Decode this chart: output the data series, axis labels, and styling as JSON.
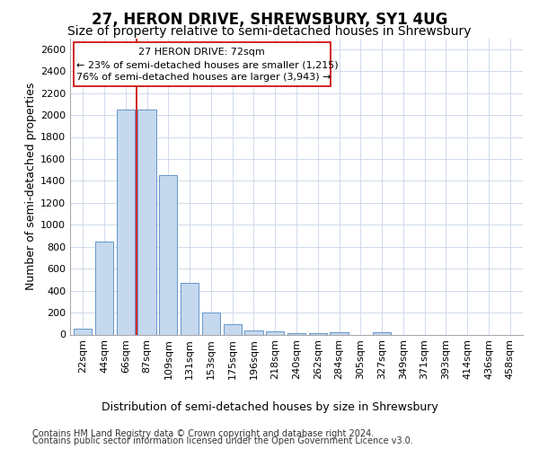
{
  "title": "27, HERON DRIVE, SHREWSBURY, SY1 4UG",
  "subtitle": "Size of property relative to semi-detached houses in Shrewsbury",
  "xlabel": "Distribution of semi-detached houses by size in Shrewsbury",
  "ylabel": "Number of semi-detached properties",
  "footer_line1": "Contains HM Land Registry data © Crown copyright and database right 2024.",
  "footer_line2": "Contains public sector information licensed under the Open Government Licence v3.0.",
  "bar_labels": [
    "22sqm",
    "44sqm",
    "66sqm",
    "87sqm",
    "109sqm",
    "131sqm",
    "153sqm",
    "175sqm",
    "196sqm",
    "218sqm",
    "240sqm",
    "262sqm",
    "284sqm",
    "305sqm",
    "327sqm",
    "349sqm",
    "371sqm",
    "393sqm",
    "414sqm",
    "436sqm",
    "458sqm"
  ],
  "bar_values": [
    50,
    850,
    2050,
    2050,
    1450,
    470,
    200,
    95,
    40,
    25,
    15,
    10,
    20,
    0,
    20,
    0,
    0,
    0,
    0,
    0,
    0
  ],
  "bar_color": "#c5d8ee",
  "bar_edge_color": "#6496c8",
  "bar_width": 0.85,
  "ylim": [
    0,
    2700
  ],
  "yticks": [
    0,
    200,
    400,
    600,
    800,
    1000,
    1200,
    1400,
    1600,
    1800,
    2000,
    2200,
    2400,
    2600
  ],
  "vline_x_index": 2.5,
  "vline_color": "#cc0000",
  "annotation_title": "27 HERON DRIVE: 72sqm",
  "annotation_line1": "← 23% of semi-detached houses are smaller (1,215)",
  "annotation_line2": "76% of semi-detached houses are larger (3,943) →",
  "annotation_box_color": "#cc0000",
  "bg_color": "#ffffff",
  "grid_color": "#c8d4e8",
  "title_fontsize": 12,
  "subtitle_fontsize": 10,
  "axis_label_fontsize": 9,
  "tick_fontsize": 8,
  "annotation_fontsize": 8,
  "footer_fontsize": 7
}
